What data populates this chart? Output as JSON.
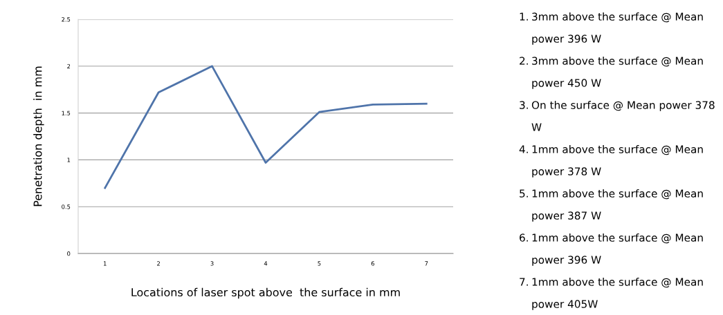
{
  "chart_data": {
    "type": "line",
    "xlabel": "Locations of laser spot above  the surface in mm",
    "ylabel": "Penetration depth  in mm",
    "categories": [
      "1",
      "2",
      "3",
      "4",
      "5",
      "6",
      "7"
    ],
    "series": [
      {
        "color": "#4f74aa",
        "values": [
          0.7,
          1.72,
          2.0,
          0.97,
          1.51,
          1.59,
          1.6
        ]
      }
    ],
    "ylim": [
      0,
      2.5
    ],
    "yticks": [
      0,
      {
        "value": 0.5,
        "label": "0.5"
      },
      1,
      {
        "value": 1.5,
        "label": "1.5"
      },
      2,
      {
        "value": 2.5,
        "label": "2.5"
      }
    ],
    "grid": "y",
    "legend": false,
    "marker": "none",
    "line_style": "solid",
    "annotations": [
      "1.  3mm above the surface @ Mean power 396 W",
      "2.  3mm above the surface @ Mean power 450 W",
      "3.  On the surface @ Mean power 378 W",
      "4.  1mm above the surface @ Mean power 378 W",
      "5.  1mm above the surface @ Mean power 387 W",
      "6.  1mm above the surface @ Mean power 396 W",
      "7.  1mm above the surface @ Mean power 405W"
    ]
  }
}
